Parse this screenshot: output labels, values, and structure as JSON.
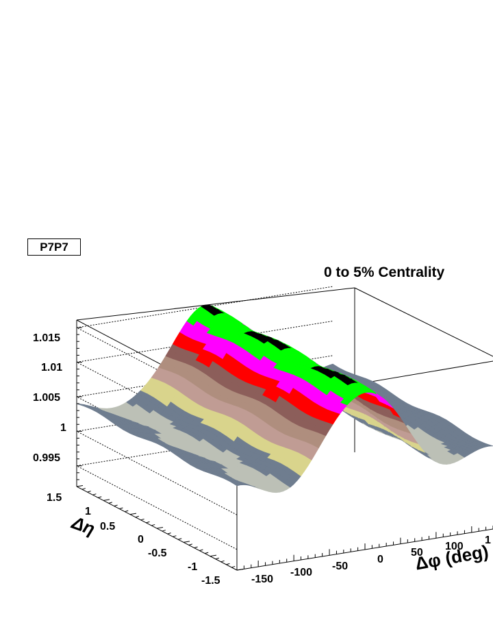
{
  "tag": "P7P7",
  "chart_data": {
    "type": "surface",
    "title": "0 to 5% Centrality",
    "xlabel": "Δφ (deg)",
    "ylabel": "Δη",
    "x_ticks": [
      "-150",
      "-100",
      "-50",
      "0",
      "50",
      "100",
      "1"
    ],
    "y_ticks": [
      "1.5",
      "1",
      "0.5",
      "0",
      "-0.5",
      "-1",
      "-1.5"
    ],
    "z_ticks": [
      "0.995",
      "1",
      "1.005",
      "1.01",
      "1.015"
    ],
    "xlim": [
      -180,
      180
    ],
    "ylim": [
      -1.5,
      1.5
    ],
    "zlim": [
      0.992,
      1.016
    ],
    "grid": true,
    "near_side_peak": {
      "x": 0,
      "z": 1.015
    },
    "away_side_ridge": {
      "x": 180,
      "z": 1.004
    },
    "minima": {
      "x": [
        -90,
        90
      ],
      "z": 0.991
    },
    "colors": [
      "#5e5e5e",
      "#a8a8a8",
      "#d6ceb4",
      "#c0b498",
      "#ab9c88",
      "#8a6a5a",
      "#86c7ae",
      "#bcc0b6",
      "#6f7d8f",
      "#d9d48c",
      "#c09c94",
      "#af8e7e",
      "#8c5e5a",
      "#ff0000",
      "#ff00ff",
      "#00ff00",
      "#000000"
    ]
  }
}
